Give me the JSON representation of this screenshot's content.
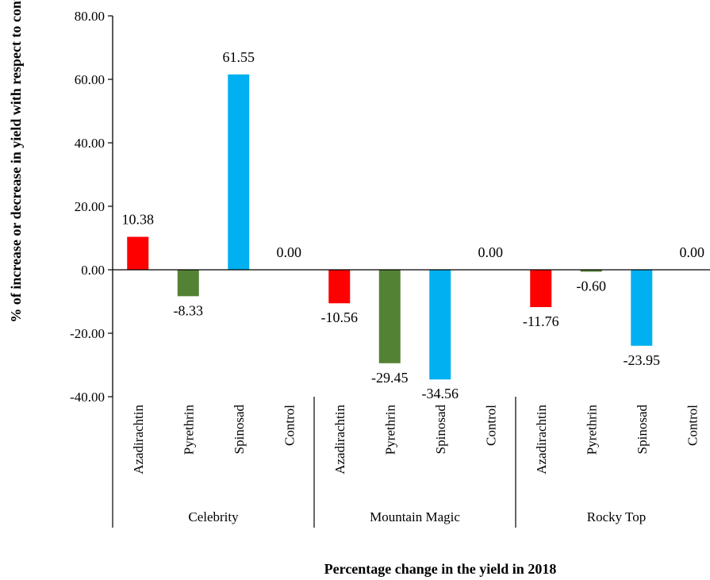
{
  "chart_data": {
    "type": "bar",
    "xlabel": "Percentage change in the yield in 2018",
    "ylabel": "% of increase or decrease in yield with respect to control",
    "ylim": [
      -40,
      80
    ],
    "yticks": [
      80,
      60,
      40,
      20,
      0,
      -20,
      -40
    ],
    "ytick_labels": [
      "80.00",
      "60.00",
      "40.00",
      "20.00",
      "0.00",
      "-20.00",
      "-40.00"
    ],
    "grid": false,
    "legend": "none",
    "groups": [
      {
        "name": "Celebrity",
        "bars": [
          {
            "category": "Azadirachtin",
            "value": 10.38,
            "label": "10.38"
          },
          {
            "category": "Pyrethrin",
            "value": -8.33,
            "label": "-8.33"
          },
          {
            "category": "Spinosad",
            "value": 61.55,
            "label": "61.55"
          },
          {
            "category": "Control",
            "value": 0.0,
            "label": "0.00"
          }
        ]
      },
      {
        "name": "Mountain Magic",
        "bars": [
          {
            "category": "Azadirachtin",
            "value": -10.56,
            "label": "-10.56"
          },
          {
            "category": "Pyrethrin",
            "value": -29.45,
            "label": "-29.45"
          },
          {
            "category": "Spinosad",
            "value": -34.56,
            "label": "-34.56"
          },
          {
            "category": "Control",
            "value": 0.0,
            "label": "0.00"
          }
        ]
      },
      {
        "name": "Rocky Top",
        "bars": [
          {
            "category": "Azadirachtin",
            "value": -11.76,
            "label": "-11.76"
          },
          {
            "category": "Pyrethrin",
            "value": -0.6,
            "label": "-0.60"
          },
          {
            "category": "Spinosad",
            "value": -23.95,
            "label": "-23.95"
          },
          {
            "category": "Control",
            "value": 0.0,
            "label": "0.00"
          }
        ]
      }
    ],
    "colors": {
      "Azadirachtin": "#ff0000",
      "Pyrethrin": "#548235",
      "Spinosad": "#00b0f0",
      "Control": "#ffffff"
    }
  }
}
